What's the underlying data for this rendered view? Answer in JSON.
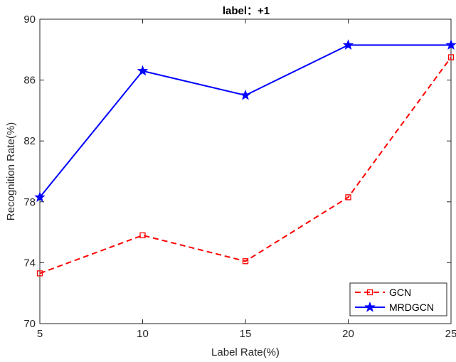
{
  "chart_data": {
    "type": "line",
    "title": "label：+1",
    "xlabel": "Label Rate(%)",
    "ylabel": "Recognition Rate(%)",
    "x": [
      5,
      10,
      15,
      20,
      25
    ],
    "xlim": [
      5,
      25
    ],
    "ylim": [
      70,
      90
    ],
    "xticks": [
      5,
      10,
      15,
      20,
      25
    ],
    "yticks": [
      70,
      74,
      78,
      82,
      86,
      90
    ],
    "grid": false,
    "legend_position": "bottom-right",
    "series": [
      {
        "name": "GCN",
        "values": [
          73.3,
          75.8,
          74.1,
          78.3,
          87.5
        ],
        "color": "#ff0000",
        "line_style": "dashed",
        "marker": "square"
      },
      {
        "name": "MRDGCN",
        "values": [
          78.3,
          86.6,
          85.0,
          88.3,
          88.3
        ],
        "color": "#0000ff",
        "line_style": "solid",
        "marker": "star"
      }
    ]
  }
}
